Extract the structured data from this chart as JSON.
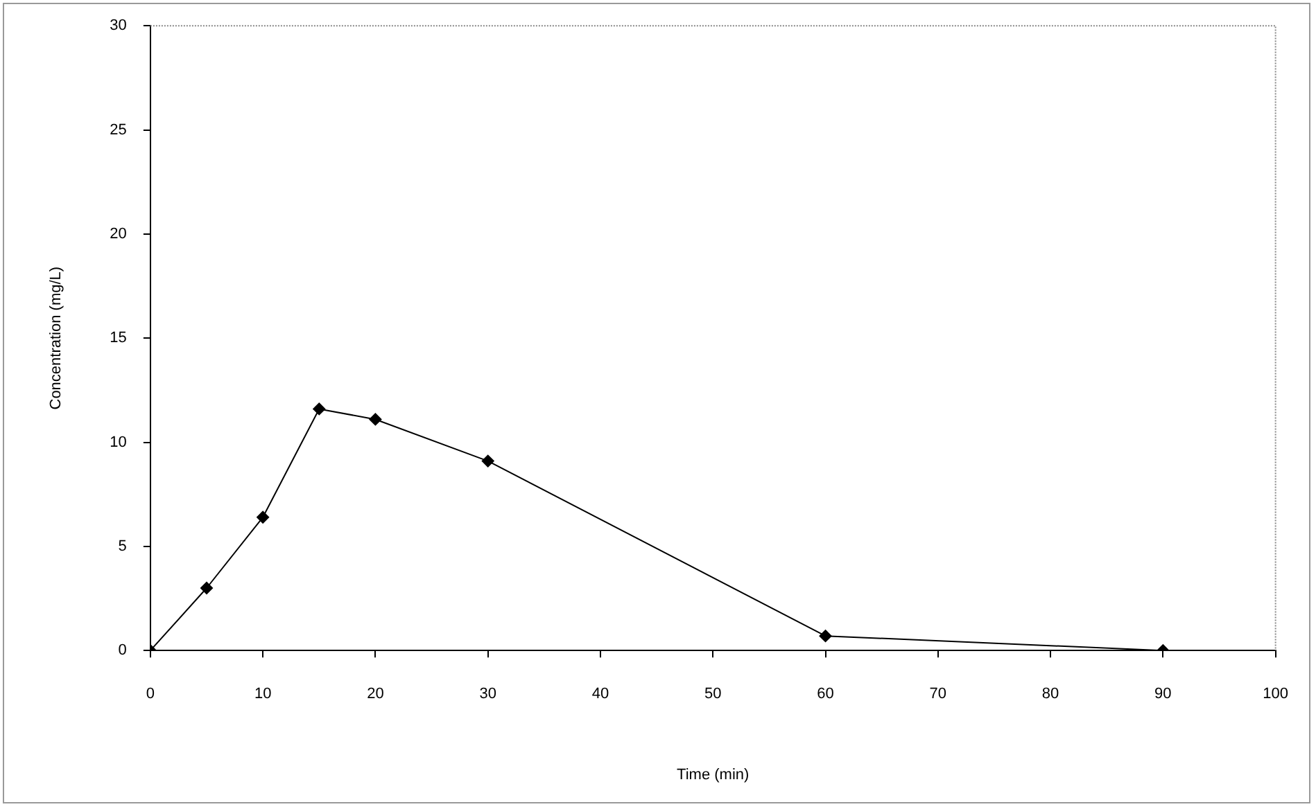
{
  "chart_data": {
    "type": "line",
    "xlabel": "Time (min)",
    "ylabel": "Concentration (mg/L)",
    "x": [
      0,
      5,
      10,
      15,
      20,
      30,
      60,
      90
    ],
    "series": [
      {
        "color": "#000000",
        "values": [
          0,
          3,
          6.4,
          11.6,
          11.1,
          9.1,
          0.7,
          0
        ]
      }
    ],
    "xlim": [
      0,
      100
    ],
    "xticks": [
      0,
      10,
      20,
      30,
      40,
      50,
      60,
      70,
      80,
      90,
      100
    ],
    "ylim": [
      0,
      30
    ],
    "yticks": [
      0,
      5,
      10,
      15,
      20,
      25,
      30
    ],
    "grid": false,
    "legend": false,
    "marker": "diamond",
    "line_style": "solid"
  }
}
